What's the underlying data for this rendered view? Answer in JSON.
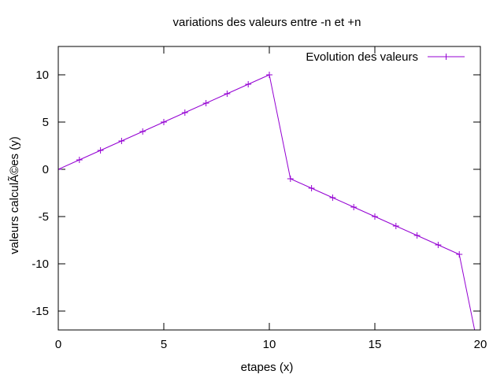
{
  "chart_data": {
    "type": "line",
    "title": "variations des valeurs entre -n et +n",
    "xlabel": "etapes (x)",
    "ylabel": "valeurs calculÃ©es (y)",
    "xlim": [
      0,
      20
    ],
    "ylim": [
      -17,
      13
    ],
    "xticks": [
      0,
      5,
      10,
      15,
      20
    ],
    "yticks": [
      10,
      5,
      0,
      -5,
      -10,
      -15
    ],
    "grid": false,
    "legend_position": "top-right",
    "series": [
      {
        "name": "Evolution des valeurs",
        "color": "#9400d3",
        "marker": "plus",
        "x": [
          0,
          1,
          2,
          3,
          4,
          5,
          6,
          7,
          8,
          9,
          10,
          11,
          12,
          13,
          14,
          15,
          16,
          17,
          18,
          19,
          20
        ],
        "y": [
          0,
          1,
          2,
          3,
          4,
          5,
          6,
          7,
          8,
          9,
          10,
          -1,
          -2,
          -3,
          -4,
          -5,
          -6,
          -7,
          -8,
          -9,
          -20
        ]
      }
    ]
  }
}
